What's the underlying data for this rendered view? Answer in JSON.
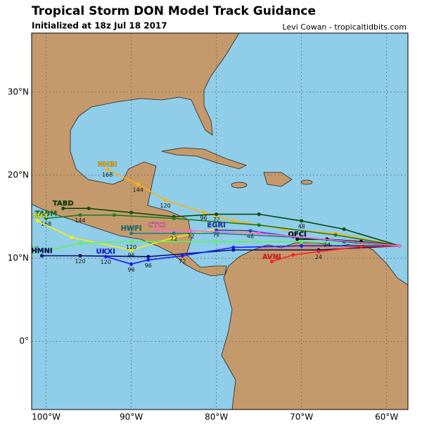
{
  "header": {
    "title": "Tropical Storm DON Model Track Guidance",
    "subtitle": "Initialized at 18z Jul 18 2017",
    "credit": "Levi Cowan - tropicaltidbits.com"
  },
  "map": {
    "xlim": [
      -101.7,
      -57.5
    ],
    "ylim": [
      -8.2,
      37.1
    ],
    "xticks": [
      {
        "value": -100,
        "label": "100°W"
      },
      {
        "value": -90,
        "label": "90°W"
      },
      {
        "value": -80,
        "label": "80°W"
      },
      {
        "value": -70,
        "label": "70°W"
      },
      {
        "value": -60,
        "label": "60°W"
      }
    ],
    "yticks": [
      {
        "value": 0,
        "label": "0°"
      },
      {
        "value": 10,
        "label": "10°N"
      },
      {
        "value": 20,
        "label": "20°N"
      },
      {
        "value": 30,
        "label": "30°N"
      }
    ],
    "grid": true,
    "tracks": [
      {
        "name": "NHBI",
        "color": "#ffb000",
        "lon": [
          -58.5,
          -66,
          -72,
          -78,
          -81.5,
          -86,
          -89.2,
          -92.8
        ],
        "lat": [
          11.5,
          13,
          13.5,
          14.5,
          15.5,
          17,
          18.9,
          20.7
        ],
        "hours": [
          null,
          null,
          null,
          null,
          96,
          120,
          144,
          168
        ]
      },
      {
        "name": "TABD",
        "color": "#0a4a0a",
        "lon": [
          -58.5,
          -65,
          -70,
          -75,
          -80,
          -85,
          -90,
          -95,
          -98
        ],
        "lat": [
          11.5,
          13.5,
          14.5,
          15.3,
          15.3,
          15,
          15.5,
          16,
          16
        ],
        "hours": [
          null,
          null,
          48,
          null,
          72,
          null,
          null,
          null,
          null
        ]
      },
      {
        "name": "TABM",
        "color": "#1e7a1e",
        "lon": [
          -58.5,
          -66,
          -75,
          -85,
          -92,
          -96,
          -100
        ],
        "lat": [
          11.5,
          12.8,
          14,
          14.8,
          15.2,
          15.2,
          14.8
        ],
        "hours": [
          null,
          null,
          null,
          null,
          null,
          144,
          168
        ]
      },
      {
        "name": "CMCI",
        "color": "#f2f200",
        "lon": [
          -58.5,
          -70,
          -80,
          -85,
          -90,
          -97,
          -101
        ],
        "lat": [
          11.5,
          12.5,
          13.5,
          12.5,
          11,
          12.5,
          14.5
        ],
        "hours": [
          null,
          null,
          72,
          null,
          96,
          null,
          null
        ]
      },
      {
        "name": "TABS",
        "color": "#5cf25c",
        "lon": [
          -58.5,
          -70,
          -80,
          -90,
          -96,
          -102
        ],
        "lat": [
          11.5,
          12,
          12,
          12,
          11.8,
          10.5
        ],
        "hours": [
          null,
          null,
          null,
          120,
          null,
          null
        ]
      },
      {
        "name": "HMNI",
        "color": "#0a0a6e",
        "lon": [
          -58.5,
          -68,
          -78,
          -88,
          -96,
          -100.5
        ],
        "lat": [
          11.5,
          11,
          11,
          10.2,
          10.3,
          10.3
        ],
        "hours": [
          null,
          null,
          null,
          null,
          120,
          null
        ]
      },
      {
        "name": "UKXI",
        "color": "#1a1aff",
        "lon": [
          -58.5,
          -70,
          -78,
          -84,
          -88,
          -90,
          -93
        ],
        "lat": [
          11.5,
          11.5,
          11.3,
          10.3,
          9.8,
          9.3,
          10.2
        ],
        "hours": [
          null,
          null,
          null,
          72,
          96,
          96,
          120
        ]
      },
      {
        "name": "AVNI",
        "color": "#ff2020",
        "lon": [
          -58.5,
          -63,
          -68,
          -71,
          -73.5
        ],
        "lat": [
          11.5,
          11.4,
          10.8,
          10.4,
          9.6
        ],
        "hours": [
          null,
          null,
          24,
          null,
          null
        ]
      },
      {
        "name": "EGRI",
        "color": "#2040d0",
        "lon": [
          -58.5,
          -65,
          -71,
          -76,
          -80
        ],
        "lat": [
          11.5,
          12,
          12.6,
          13.3,
          13.4
        ],
        "hours": [
          null,
          null,
          null,
          48,
          null
        ]
      },
      {
        "name": "OFCI",
        "color": "#000000",
        "lon": [
          -58.5,
          -63,
          -67,
          -70.5
        ],
        "lat": [
          11.5,
          12,
          12.3,
          12.3
        ],
        "hours": [
          null,
          null,
          24,
          null
        ]
      },
      {
        "name": "HWFI",
        "color": "#138080",
        "lon": [
          -58.5,
          -70,
          -80,
          -85,
          -90
        ],
        "lat": [
          11.5,
          12.5,
          13,
          13,
          13
        ],
        "hours": [
          null,
          null,
          null,
          72,
          null
        ]
      },
      {
        "name": "CTCI",
        "color": "#ff66cc",
        "lon": [
          -58.5,
          -75,
          -83,
          -87
        ],
        "lat": [
          11.5,
          13,
          13.3,
          13.4
        ],
        "hours": [
          null,
          null,
          72,
          null
        ]
      }
    ]
  }
}
